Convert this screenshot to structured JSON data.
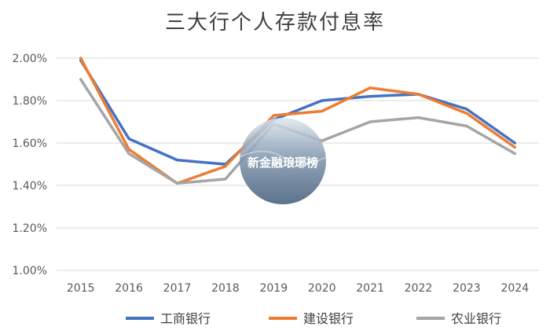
{
  "chart_data": {
    "type": "line",
    "title": "三大行个人存款付息率",
    "categories": [
      "2015",
      "2016",
      "2017",
      "2018",
      "2019",
      "2020",
      "2021",
      "2022",
      "2023",
      "2024"
    ],
    "y_ticks": [
      "1.00%",
      "1.20%",
      "1.40%",
      "1.60%",
      "1.80%",
      "2.00%"
    ],
    "ylim": [
      1.0,
      2.0
    ],
    "y_unit": "%",
    "grid": true,
    "legend_position": "bottom",
    "series": [
      {
        "name": "工商银行",
        "color": "#4472C4",
        "values": [
          1.99,
          1.62,
          1.52,
          1.5,
          1.71,
          1.8,
          1.82,
          1.83,
          1.76,
          1.6
        ]
      },
      {
        "name": "建设银行",
        "color": "#ED7D31",
        "values": [
          2.0,
          1.57,
          1.41,
          1.49,
          1.73,
          1.75,
          1.86,
          1.83,
          1.74,
          1.58
        ]
      },
      {
        "name": "农业银行",
        "color": "#A5A5A5",
        "values": [
          1.9,
          1.55,
          1.41,
          1.43,
          1.69,
          1.61,
          1.7,
          1.72,
          1.68,
          1.55
        ]
      }
    ]
  },
  "watermark": {
    "text": "新金融琅琊榜"
  }
}
